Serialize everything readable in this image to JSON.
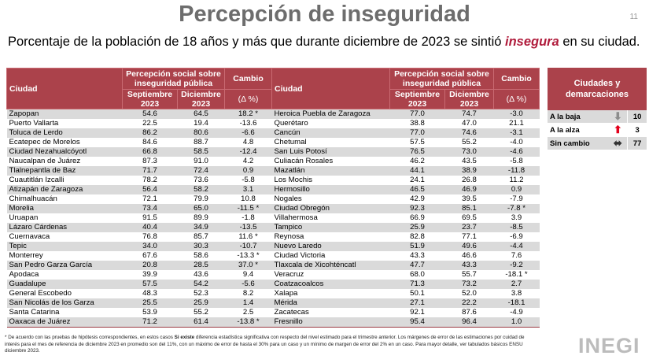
{
  "title": "Percepción de inseguridad",
  "page_number": "11",
  "subtitle": {
    "before": "Porcentaje de la población de 18 años y más que durante diciembre de 2023 se sintió ",
    "highlight": "insegura",
    "after": " en su ciudad."
  },
  "table_headers": {
    "city": "Ciudad",
    "perception": "Percepción social sobre inseguridad pública",
    "change": "Cambio",
    "change_unit": "(Δ %)",
    "sep": "Septiembre 2023",
    "dec": "Diciembre 2023"
  },
  "left_rows": [
    [
      "Zapopan",
      "54.6",
      "64.5",
      "18.2 *"
    ],
    [
      "Puerto Vallarta",
      "22.5",
      "19.4",
      "-13.6"
    ],
    [
      "Toluca de Lerdo",
      "86.2",
      "80.6",
      "-6.6"
    ],
    [
      "Ecatepec de Morelos",
      "84.6",
      "88.7",
      "4.8"
    ],
    [
      "Ciudad Nezahualcóyotl",
      "66.8",
      "58.5",
      "-12.4"
    ],
    [
      "Naucalpan de Juárez",
      "87.3",
      "91.0",
      "4.2"
    ],
    [
      "Tlalnepantla de Baz",
      "71.7",
      "72.4",
      "0.9"
    ],
    [
      "Cuautitlán Izcalli",
      "78.2",
      "73.6",
      "-5.8"
    ],
    [
      "Atizapán de Zaragoza",
      "56.4",
      "58.2",
      "3.1"
    ],
    [
      "Chimalhuacán",
      "72.1",
      "79.9",
      "10.8"
    ],
    [
      "Morelia",
      "73.4",
      "65.0",
      "-11.5 *"
    ],
    [
      "Uruapan",
      "91.5",
      "89.9",
      "-1.8"
    ],
    [
      "Lázaro Cárdenas",
      "40.4",
      "34.9",
      "-13.5"
    ],
    [
      "Cuernavaca",
      "76.8",
      "85.7",
      "11.6 *"
    ],
    [
      "Tepic",
      "34.0",
      "30.3",
      "-10.7"
    ],
    [
      "Monterrey",
      "67.6",
      "58.6",
      "-13.3 *"
    ],
    [
      "San Pedro Garza García",
      "20.8",
      "28.5",
      "37.0 *"
    ],
    [
      "Apodaca",
      "39.9",
      "43.6",
      "9.4"
    ],
    [
      "Guadalupe",
      "57.5",
      "54.2",
      "-5.6"
    ],
    [
      "General Escobedo",
      "48.3",
      "52.3",
      "8.2"
    ],
    [
      "San Nicolás de los Garza",
      "25.5",
      "25.9",
      "1.4"
    ],
    [
      "Santa Catarina",
      "53.9",
      "55.2",
      "2.5"
    ],
    [
      "Oaxaca de Juárez",
      "71.2",
      "61.4",
      "-13.8 *"
    ]
  ],
  "right_rows": [
    [
      "Heroica Puebla de Zaragoza",
      "77.0",
      "74.7",
      "-3.0"
    ],
    [
      "Querétaro",
      "38.8",
      "47.0",
      "21.1"
    ],
    [
      "Cancún",
      "77.0",
      "74.6",
      "-3.1"
    ],
    [
      "Chetumal",
      "57.5",
      "55.2",
      "-4.0"
    ],
    [
      "San Luis Potosí",
      "76.5",
      "73.0",
      "-4.6"
    ],
    [
      "Culiacán Rosales",
      "46.2",
      "43.5",
      "-5.8"
    ],
    [
      "Mazatlán",
      "44.1",
      "38.9",
      "-11.8"
    ],
    [
      "Los Mochis",
      "24.1",
      "26.8",
      "11.2"
    ],
    [
      "Hermosillo",
      "46.5",
      "46.9",
      "0.9"
    ],
    [
      "Nogales",
      "42.9",
      "39.5",
      "-7.9"
    ],
    [
      "Ciudad Obregón",
      "92.3",
      "85.1",
      "-7.8 *"
    ],
    [
      "Villahermosa",
      "66.9",
      "69.5",
      "3.9"
    ],
    [
      "Tampico",
      "25.9",
      "23.7",
      "-8.5"
    ],
    [
      "Reynosa",
      "82.8",
      "77.1",
      "-6.9"
    ],
    [
      "Nuevo Laredo",
      "51.9",
      "49.6",
      "-4.4"
    ],
    [
      "Ciudad Victoria",
      "43.3",
      "46.6",
      "7.6"
    ],
    [
      "Tlaxcala de Xicohténcatl",
      "47.7",
      "43.3",
      "-9.2"
    ],
    [
      "Veracruz",
      "68.0",
      "55.7",
      "-18.1 *"
    ],
    [
      "Coatzacoalcos",
      "71.3",
      "73.2",
      "2.7"
    ],
    [
      "Xalapa",
      "50.1",
      "52.0",
      "3.8"
    ],
    [
      "Mérida",
      "27.1",
      "22.2",
      "-18.1"
    ],
    [
      "Zacatecas",
      "92.1",
      "87.6",
      "-4.9"
    ],
    [
      "Fresnillo",
      "95.4",
      "96.4",
      "1.0"
    ]
  ],
  "legend": {
    "header": "Ciudades y demarcaciones",
    "rows": [
      {
        "label": "A la baja",
        "icon": "arrow-down-icon",
        "color": "#8c8c8c",
        "count": "10"
      },
      {
        "label": "A la alza",
        "icon": "arrow-up-icon",
        "color": "#e3001b",
        "count": "3"
      },
      {
        "label": "Sin cambio",
        "icon": "arrow-left-right-icon",
        "color": "#333333",
        "count": "77"
      }
    ]
  },
  "footnote": {
    "p1": "* De acuerdo con las pruebas de hipótesis correspondientes, en estos casos ",
    "bold": "Si existe",
    "p2": " diferencia estadística significativa con respecto del nivel estimado para el trimestre anterior. Los márgenes de error de las estimaciones por cuidad de interés para el mes de referencia de diciembre 2023 en promedio son del 11%, con un máximo de error de hasta el 30% para un caso y un mínimo de margen de error del 2% en un caso. Para mayor detalle, ver tabulados básicos ENSU diciembre 2023."
  },
  "logo": "INEGI",
  "colors": {
    "header": "#ab424b",
    "highlight": "#b01c3c"
  }
}
